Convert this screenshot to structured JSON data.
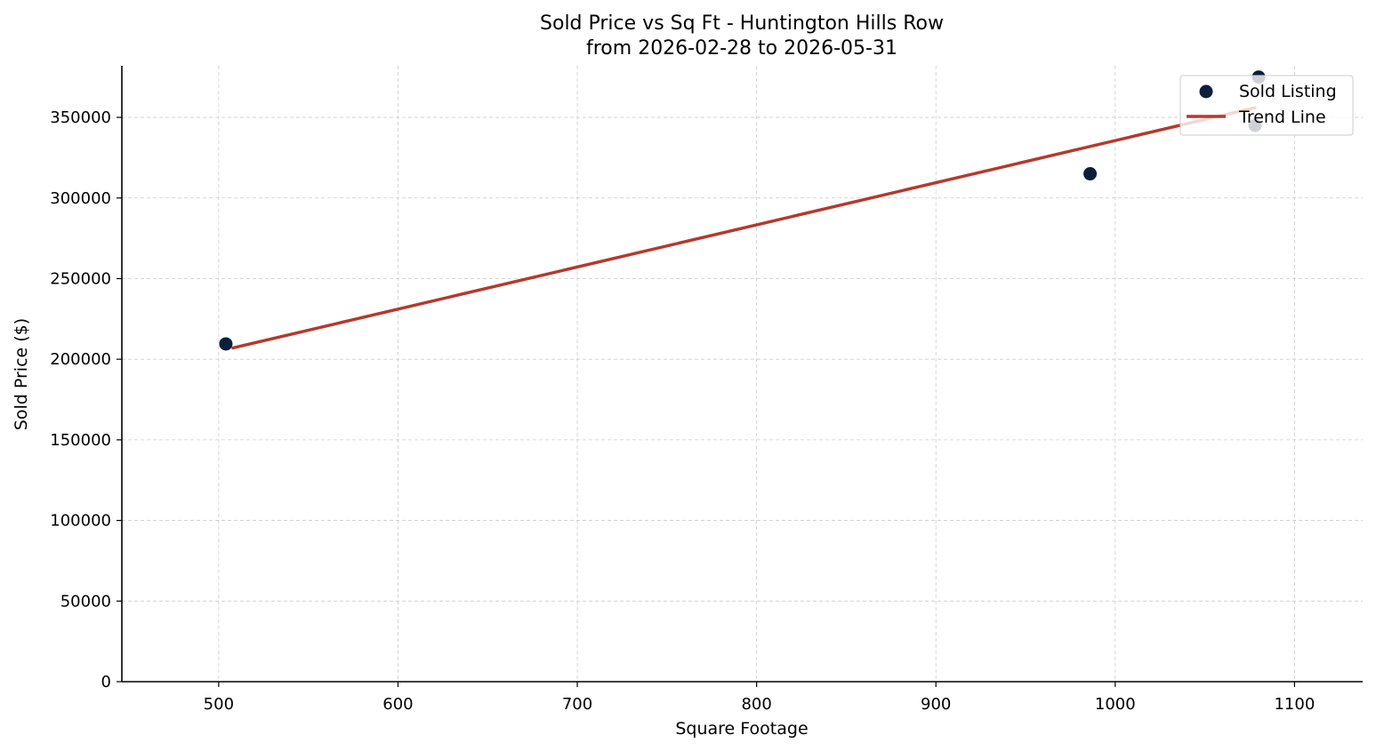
{
  "chart_data": {
    "type": "scatter",
    "title": "Sold Price vs Sq Ft - Huntington Hills Row",
    "subtitle": "from 2026-02-28 to 2026-05-31",
    "xlabel": "Square Footage",
    "ylabel": "Sold Price ($)",
    "xlim": [
      446,
      1138
    ],
    "ylim": [
      0,
      382000
    ],
    "x_ticks": [
      500,
      600,
      700,
      800,
      900,
      1000,
      1100
    ],
    "y_ticks": [
      0,
      50000,
      100000,
      150000,
      200000,
      250000,
      300000,
      350000
    ],
    "grid": true,
    "legend_position": "top-right",
    "series": [
      {
        "name": "Sold Listing",
        "kind": "scatter",
        "color": "#0b1f3a",
        "points": [
          {
            "x": 504,
            "y": 209500
          },
          {
            "x": 986,
            "y": 315000
          },
          {
            "x": 1078,
            "y": 345000
          },
          {
            "x": 1080,
            "y": 375000
          }
        ]
      },
      {
        "name": "Trend Line",
        "kind": "line",
        "color": "#b33a2e",
        "points": [
          {
            "x": 508,
            "y": 207000
          },
          {
            "x": 1078,
            "y": 356000
          }
        ]
      }
    ]
  }
}
